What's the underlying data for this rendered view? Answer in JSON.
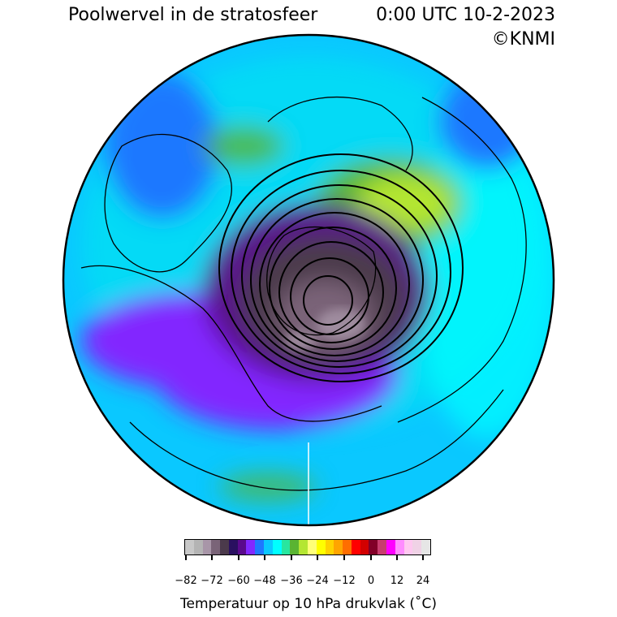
{
  "header": {
    "title": "Poolwervel in de stratosfeer",
    "datetime": "0:00 UTC 10-2-2023",
    "copyright": "©KNMI"
  },
  "map": {
    "projection": "polar stereographic (north pole)",
    "variable": "temperature at 10 hPa",
    "contours": "geopotential height (black)",
    "coastlines": true
  },
  "colorbar": {
    "label": "Temperatuur op 10 hPa drukvlak ($^\\circ$C)",
    "label_text": "Temperatuur op 10 hPa drukvlak (˚C)",
    "ticks": [
      "−82",
      "−72",
      "−60",
      "−48",
      "−36",
      "−24",
      "−12",
      "0",
      "12",
      "24"
    ],
    "colors": [
      "#c8c8c8",
      "#b4b4b4",
      "#a896a8",
      "#7a6478",
      "#4b3a4b",
      "#2a1060",
      "#5a0a8c",
      "#8228ff",
      "#1e78ff",
      "#0ac8ff",
      "#00ffff",
      "#28e6a0",
      "#5ab432",
      "#b4e632",
      "#ffff78",
      "#ffff00",
      "#ffd200",
      "#ffa500",
      "#ff6e00",
      "#ff0000",
      "#d20000",
      "#820028",
      "#c83c6e",
      "#ff00ff",
      "#ff8cff",
      "#ffc8f0",
      "#f0d2e6",
      "#e6e6e6"
    ]
  }
}
